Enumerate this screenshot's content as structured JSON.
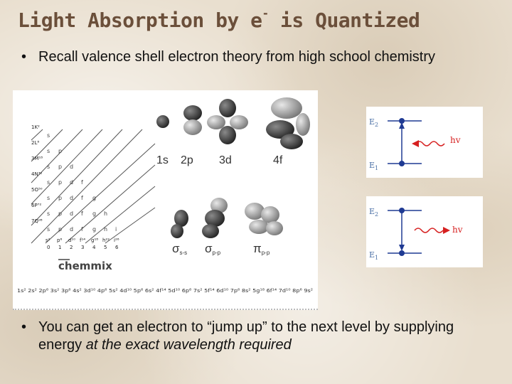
{
  "slide": {
    "title_main": "Light Absorption by e",
    "title_sup": "-",
    "title_end": " is Quantized",
    "bullet1": "Recall valence shell electron theory from high school chemistry",
    "bullet2_a": "You can get an electron to “jump up” to the next level by supplying energy ",
    "bullet2_em": "at the exact wavelength required",
    "bullet_char": "•"
  },
  "periodic_image": {
    "orbitals_top": [
      "1s",
      "2p",
      "3d",
      "4f"
    ],
    "sigma_ss": "σ",
    "sigma_ss_sub": "s-s",
    "sigma_pp": "σ",
    "sigma_pp_sub": "p-p",
    "pi_pp": "π",
    "pi_pp_sub": "p-p",
    "logo": "chemmix",
    "shell_labels": [
      "1K²",
      "2L⁸",
      "3M¹⁸",
      "4N³²",
      "5O⁵⁰",
      "6P⁷²",
      "7Q⁹⁸"
    ],
    "col_headers": [
      "s²",
      "p⁶",
      "d¹⁰",
      "f¹⁴",
      "g¹⁸",
      "h²²",
      "i²⁶"
    ],
    "col_numbers": [
      "0",
      "1",
      "2",
      "3",
      "4",
      "5",
      "6"
    ],
    "config_line": "1s² 2s² 2p⁶ 3s² 3p⁶ 4s² 3d¹⁰ 4p⁶ 5s² 4d¹⁰ 5p⁶ 6s² 4f¹⁴ 5d¹⁰ 6p⁶ 7s² 5f¹⁴ 6d¹⁰ 7p⁶ 8s² 5g¹⁸ 6f¹⁴ 7d¹⁰ 8p⁶ 9s²"
  },
  "energy_diagrams": [
    {
      "upper": "E",
      "upper_sub": "2",
      "lower": "E",
      "lower_sub": "1",
      "photon": "hv",
      "direction": "up"
    },
    {
      "upper": "E",
      "upper_sub": "2",
      "lower": "E",
      "lower_sub": "1",
      "photon": "hv",
      "direction": "down"
    }
  ],
  "colors": {
    "title": "#6b4f3a",
    "level_line": "#1f3a93",
    "photon_wave": "#d62020",
    "label": "#4a6fa5"
  }
}
